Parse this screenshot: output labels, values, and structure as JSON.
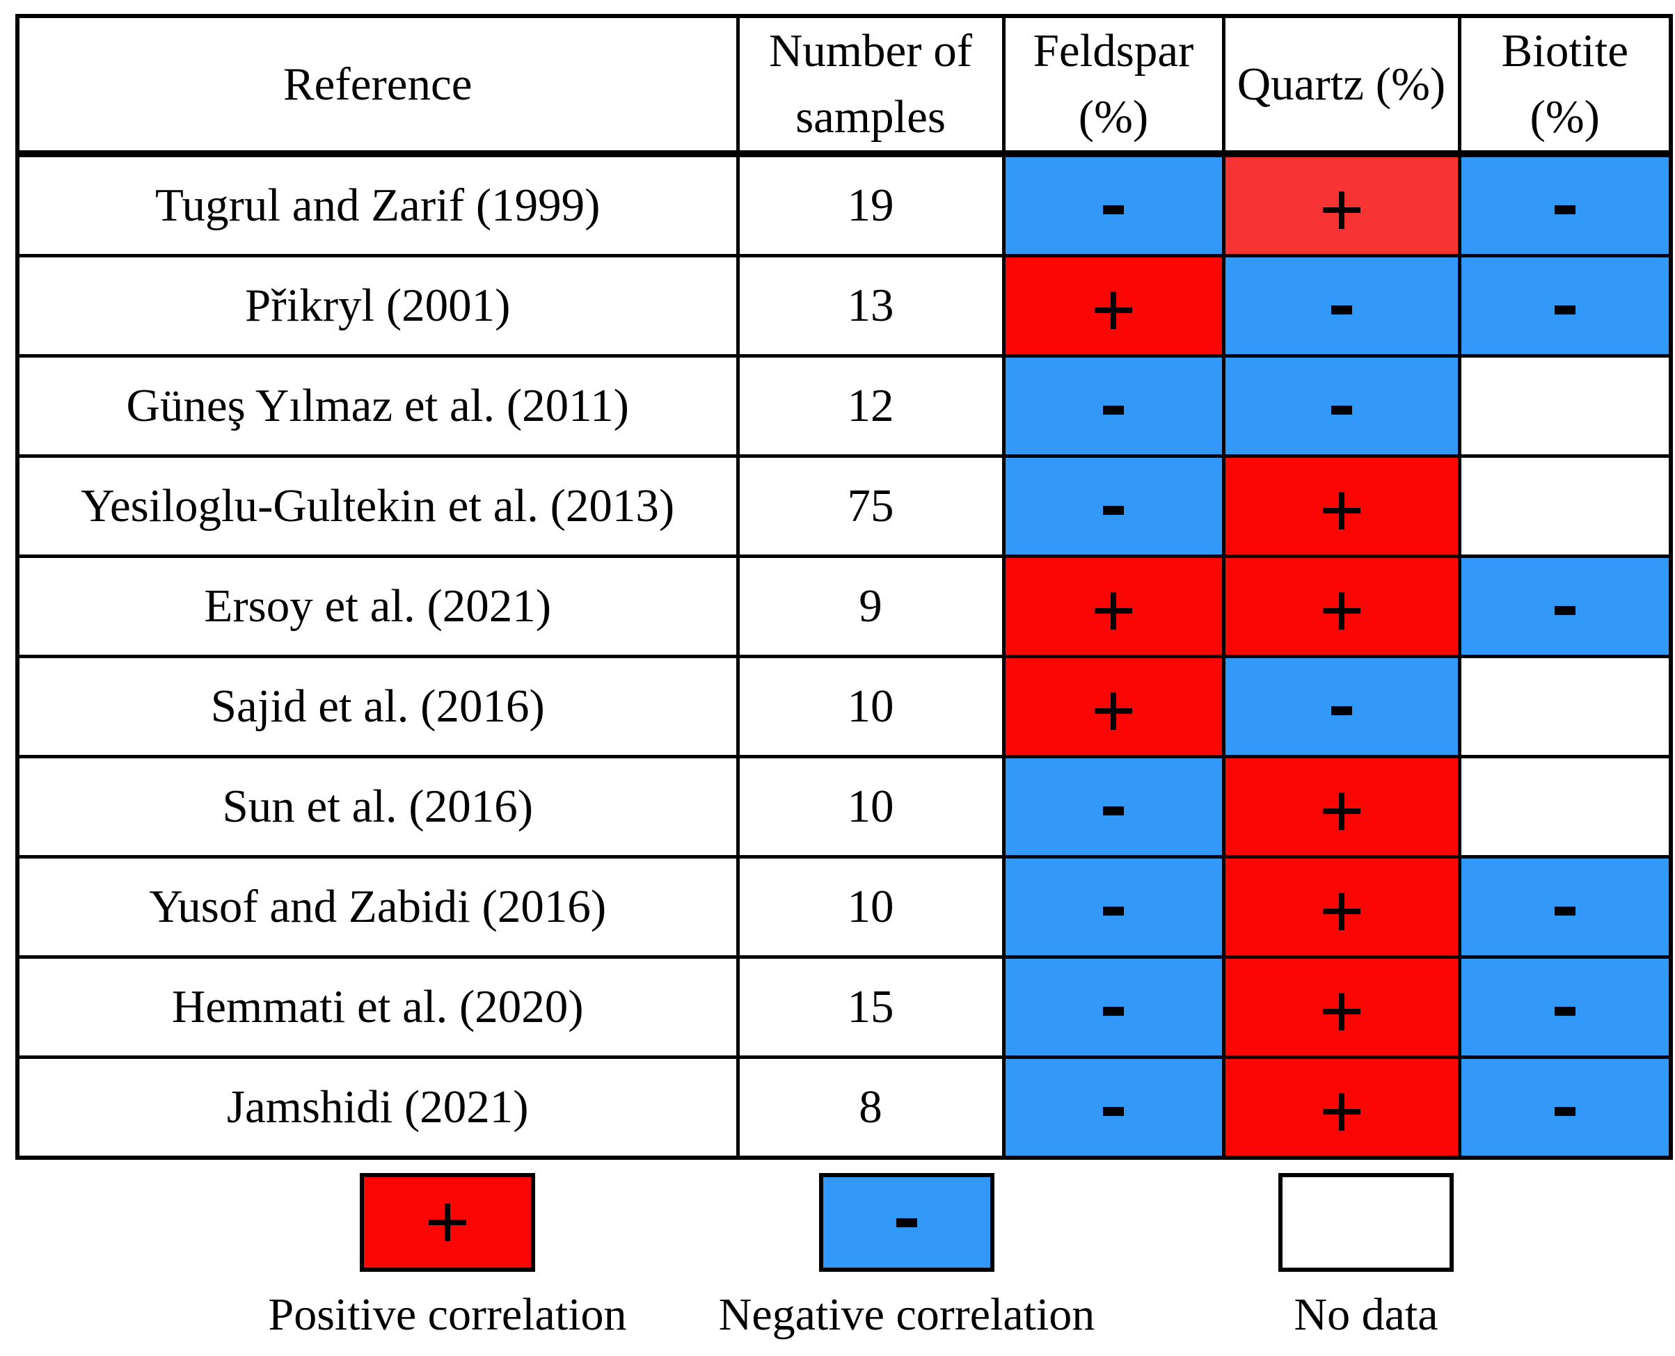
{
  "colors": {
    "positive": "#FB0505",
    "positive_light": "#F83333",
    "negative": "#3399F8",
    "no_data": "#FFFFFF",
    "grid": "#000000",
    "background": "#FFFFFF"
  },
  "chart_data": {
    "type": "table",
    "columns": [
      "Reference",
      "Number of samples",
      "Feldspar (%)",
      "Quartz (%)",
      "Biotite (%)"
    ],
    "rows": [
      {
        "reference": "Tugrul and Zarif (1999)",
        "samples": 19,
        "feldspar": "-",
        "quartz": "+",
        "biotite": "-"
      },
      {
        "reference": "Přikryl  (2001)",
        "samples": 13,
        "feldspar": "+",
        "quartz": "-",
        "biotite": "-"
      },
      {
        "reference": "Güneş Yılmaz et al. (2011)",
        "samples": 12,
        "feldspar": "-",
        "quartz": "-",
        "biotite": ""
      },
      {
        "reference": "Yesiloglu-Gultekin  et al. (2013)",
        "samples": 75,
        "feldspar": "-",
        "quartz": "+",
        "biotite": ""
      },
      {
        "reference": "Ersoy et al. (2021)",
        "samples": 9,
        "feldspar": "+",
        "quartz": "+",
        "biotite": "-"
      },
      {
        "reference": "Sajid et al. (2016)",
        "samples": 10,
        "feldspar": "+",
        "quartz": "-",
        "biotite": ""
      },
      {
        "reference": "Sun et al. (2016)",
        "samples": 10,
        "feldspar": "-",
        "quartz": "+",
        "biotite": ""
      },
      {
        "reference": "Yusof and Zabidi (2016)",
        "samples": 10,
        "feldspar": "-",
        "quartz": "+",
        "biotite": "-"
      },
      {
        "reference": "Hemmati et al. (2020)",
        "samples": 15,
        "feldspar": "-",
        "quartz": "+",
        "biotite": "-"
      },
      {
        "reference": "Jamshidi (2021)",
        "samples": 8,
        "feldspar": "-",
        "quartz": "+",
        "biotite": "-"
      }
    ],
    "cell_overrides": [
      {
        "row": 0,
        "col": "quartz",
        "color": "#F83333"
      }
    ],
    "sign_meaning": {
      "+": "Positive correlation",
      "-": "Negative correlation",
      "": "No data"
    }
  },
  "legend": {
    "items": [
      {
        "symbol": "+",
        "label": "Positive correlation",
        "color": "#FB0505"
      },
      {
        "symbol": "-",
        "label": "Negative correlation",
        "color": "#3399F8"
      },
      {
        "symbol": "",
        "label": "No data",
        "color": "#FFFFFF"
      }
    ]
  }
}
